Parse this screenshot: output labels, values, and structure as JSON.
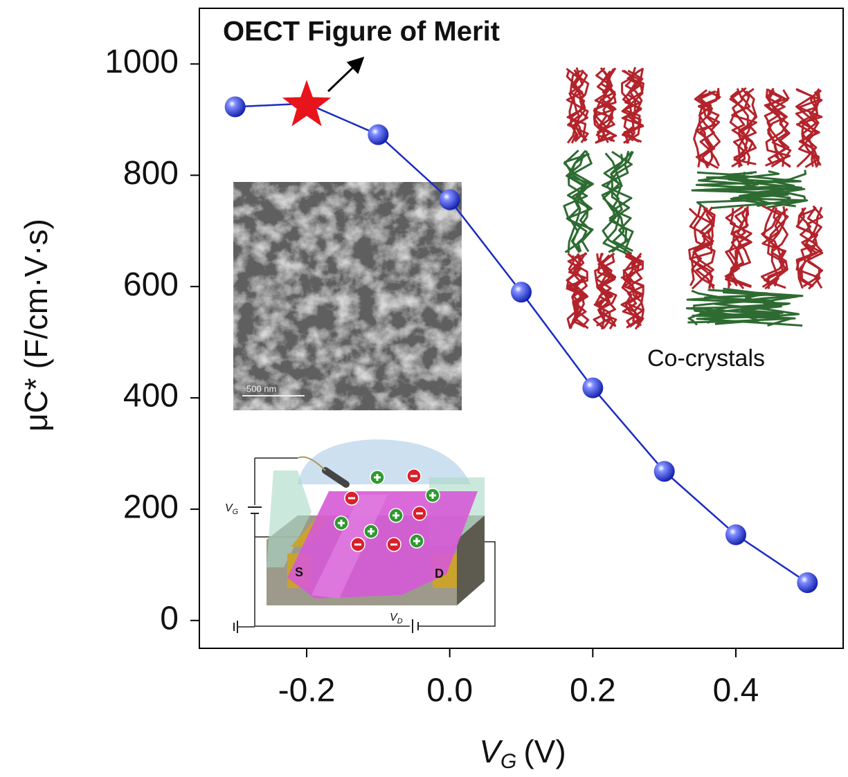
{
  "chart_data": {
    "type": "line",
    "annotation": "OECT Figure of Merit",
    "ylabel": "μC* (F/cm·V·s)",
    "xlabel": {
      "symbol": "V",
      "subscript": "G",
      "unit": "(V)"
    },
    "x": [
      -0.3,
      -0.2,
      -0.1,
      0.0,
      0.1,
      0.2,
      0.3,
      0.4,
      0.5
    ],
    "values": [
      923,
      929,
      873,
      756,
      590,
      418,
      268,
      154,
      68
    ],
    "markers": [
      "sphere",
      "star",
      "sphere",
      "sphere",
      "sphere",
      "sphere",
      "sphere",
      "sphere",
      "sphere"
    ],
    "color": "#1a2bc0",
    "star_color": "#e8141b",
    "xlim": [
      -0.35,
      0.55
    ],
    "ylim": [
      -50,
      1100
    ],
    "xticks": [
      {
        "value": -0.2,
        "label": "-0.2"
      },
      {
        "value": 0,
        "label": "0.0"
      },
      {
        "value": 0.2,
        "label": "0.2"
      },
      {
        "value": 0.4,
        "label": "0.4"
      }
    ],
    "yticks": [
      0,
      200,
      400,
      600,
      800,
      1000
    ],
    "insets": {
      "crystal_label": "Co-crystals",
      "scale_bar": "500 nm",
      "gate_label": {
        "symbol": "V",
        "subscript": "G"
      },
      "drain_label": {
        "symbol": "V",
        "subscript": "D"
      },
      "source": "S",
      "drain": "D"
    }
  }
}
